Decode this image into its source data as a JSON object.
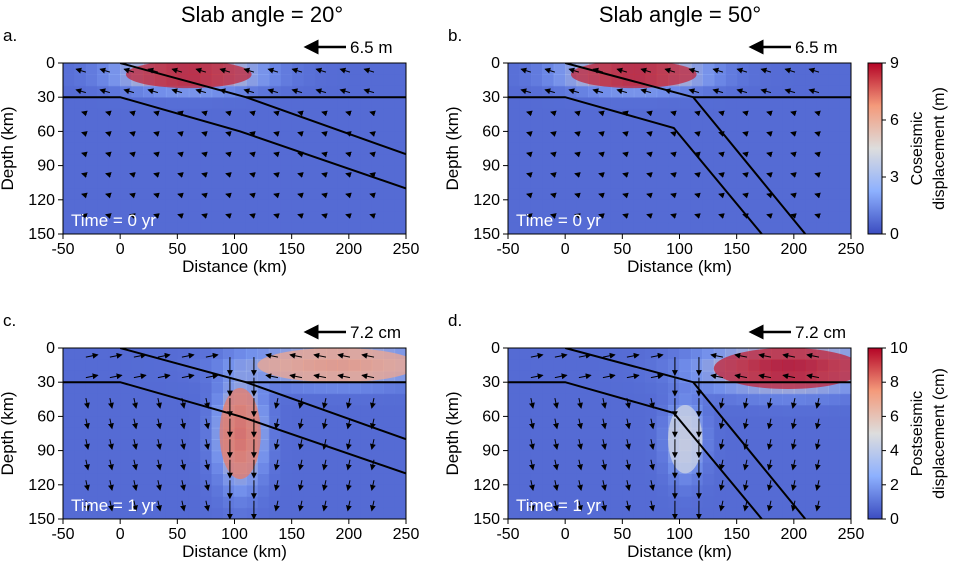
{
  "figure": {
    "column_titles": [
      "Slab angle = 20°",
      "Slab angle = 50°"
    ]
  },
  "chart_data": [
    {
      "type": "heatmap",
      "panel_label": "a.",
      "title": "Slab angle = 20°",
      "time_label": "Time = 0 yr",
      "scale_arrow_label": "6.5 m",
      "xlabel": "Distance (km)",
      "ylabel": "Depth (km)",
      "xlim": [
        -50,
        250
      ],
      "ylim": [
        0,
        150
      ],
      "xticks": [
        -50,
        0,
        50,
        100,
        150,
        200,
        250
      ],
      "yticks": [
        0,
        30,
        60,
        90,
        120,
        150
      ],
      "slab_angle_deg": 20,
      "boundaries": {
        "plate_interface": [
          [
            0,
            0
          ],
          [
            110,
            30
          ],
          [
            250,
            80
          ]
        ],
        "slab_base": [
          [
            -50,
            30
          ],
          [
            0,
            30
          ],
          [
            105,
            60
          ],
          [
            250,
            110
          ]
        ],
        "moho_depth_km": 30,
        "moho_x_start": 110
      },
      "field_description": "Coseismic displacement concentrated on shallow megathrust (~30-100 km, 0-30 km depth), peak ~9 m",
      "hotspots": [
        {
          "x": 60,
          "z": 10,
          "value": 8.5,
          "rx": 55,
          "rz": 12
        }
      ],
      "arrows_trend": "seaward (left) along interface, larger near trench"
    },
    {
      "type": "heatmap",
      "panel_label": "b.",
      "title": "Slab angle = 50°",
      "time_label": "Time = 0 yr",
      "scale_arrow_label": "6.5 m",
      "xlabel": "Distance (km)",
      "ylabel": "Depth (km)",
      "xlim": [
        -50,
        250
      ],
      "ylim": [
        0,
        150
      ],
      "xticks": [
        -50,
        0,
        50,
        100,
        150,
        200,
        250
      ],
      "yticks": [
        0,
        30,
        60,
        90,
        120,
        150
      ],
      "slab_angle_deg": 50,
      "boundaries": {
        "plate_interface": [
          [
            0,
            0
          ],
          [
            112,
            30
          ],
          [
            210,
            150
          ]
        ],
        "slab_base": [
          [
            -50,
            30
          ],
          [
            0,
            30
          ],
          [
            95,
            57
          ],
          [
            172,
            150
          ]
        ],
        "moho_depth_km": 30,
        "moho_x_start": 112
      },
      "field_description": "Coseismic displacement concentrated on shallow megathrust, peak ~9 m",
      "hotspots": [
        {
          "x": 60,
          "z": 10,
          "value": 8.5,
          "rx": 55,
          "rz": 12
        }
      ],
      "arrows_trend": "seaward (left) along interface"
    },
    {
      "type": "heatmap",
      "panel_label": "c.",
      "title": "",
      "time_label": "Time = 1 yr",
      "scale_arrow_label": "7.2 cm",
      "xlabel": "Distance (km)",
      "ylabel": "Depth (km)",
      "xlim": [
        -50,
        250
      ],
      "ylim": [
        0,
        150
      ],
      "xticks": [
        -50,
        0,
        50,
        100,
        150,
        200,
        250
      ],
      "yticks": [
        0,
        30,
        60,
        90,
        120,
        150
      ],
      "slab_angle_deg": 20,
      "boundaries": {
        "plate_interface": [
          [
            0,
            0
          ],
          [
            110,
            30
          ],
          [
            250,
            80
          ]
        ],
        "slab_base": [
          [
            -50,
            30
          ],
          [
            0,
            30
          ],
          [
            105,
            60
          ],
          [
            250,
            110
          ]
        ],
        "moho_depth_km": 30,
        "moho_x_start": 110
      },
      "field_description": "Postseismic displacement: vertical column beneath ~100-115 km reaching ~8 cm, plus shallow mantle wedge band 150-250 km",
      "hotspots": [
        {
          "x": 105,
          "z": 75,
          "value": 8.0,
          "rx": 18,
          "rz": 40
        },
        {
          "x": 190,
          "z": 15,
          "value": 7.0,
          "rx": 70,
          "rz": 15
        }
      ],
      "arrows_trend": "upward/outward in crust, downward beneath 100 km"
    },
    {
      "type": "heatmap",
      "panel_label": "d.",
      "title": "",
      "time_label": "Time = 1 yr",
      "scale_arrow_label": "7.2 cm",
      "xlabel": "Distance (km)",
      "ylabel": "Depth (km)",
      "xlim": [
        -50,
        250
      ],
      "ylim": [
        0,
        150
      ],
      "xticks": [
        -50,
        0,
        50,
        100,
        150,
        200,
        250
      ],
      "yticks": [
        0,
        30,
        60,
        90,
        120,
        150
      ],
      "slab_angle_deg": 50,
      "boundaries": {
        "plate_interface": [
          [
            0,
            0
          ],
          [
            112,
            30
          ],
          [
            210,
            150
          ]
        ],
        "slab_base": [
          [
            -50,
            30
          ],
          [
            0,
            30
          ],
          [
            95,
            57
          ],
          [
            172,
            150
          ]
        ],
        "moho_depth_km": 30,
        "moho_x_start": 112
      },
      "field_description": "Postseismic displacement strongest in shallow mantle wedge 130-250 km at 0-30 km depth (~10 cm)",
      "hotspots": [
        {
          "x": 195,
          "z": 18,
          "value": 9.5,
          "rx": 65,
          "rz": 18
        },
        {
          "x": 105,
          "z": 80,
          "value": 4.5,
          "rx": 15,
          "rz": 30
        }
      ],
      "arrows_trend": "landward-pointing large arrows in wedge, downward beneath slab"
    }
  ],
  "colorbars": [
    {
      "label_line1": "Coseismic",
      "label_line2": "displacement (m)",
      "min": 0,
      "max": 9,
      "ticks": [
        0,
        3,
        6,
        9
      ],
      "ticklabels": [
        "0",
        "3",
        "6",
        "9"
      ]
    },
    {
      "label_line1": "Postseismic",
      "label_line2": "displacement (cm)",
      "min": 0,
      "max": 10,
      "ticks": [
        0,
        2,
        4,
        6,
        8,
        10
      ],
      "ticklabels": [
        "0",
        "2",
        "4",
        "6",
        "8",
        "10"
      ]
    }
  ],
  "colors": {
    "low": "#3b4cc0",
    "mid": "#dddddd",
    "high": "#b40426",
    "line": "#000000"
  }
}
